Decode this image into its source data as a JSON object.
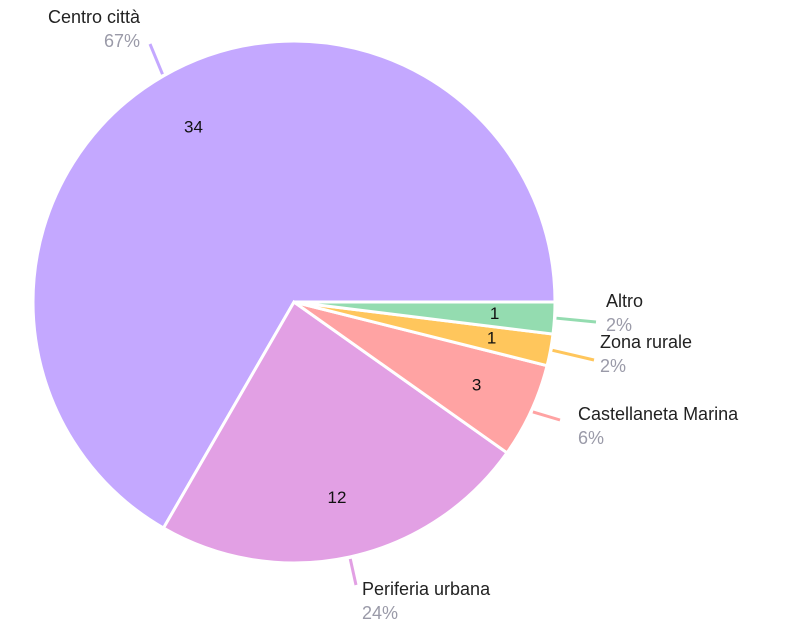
{
  "chart_data": {
    "type": "pie",
    "categories": [
      "Centro città",
      "Periferia urbana",
      "Castellaneta Marina",
      "Zona rurale",
      "Altro"
    ],
    "values": [
      34,
      12,
      3,
      1,
      1
    ],
    "percent_labels": [
      "67%",
      "24%",
      "6%",
      "2%",
      "2%"
    ],
    "colors": [
      "#c4a8ff",
      "#e2a0e4",
      "#ffa3a3",
      "#ffc65c",
      "#94dcb0"
    ]
  }
}
